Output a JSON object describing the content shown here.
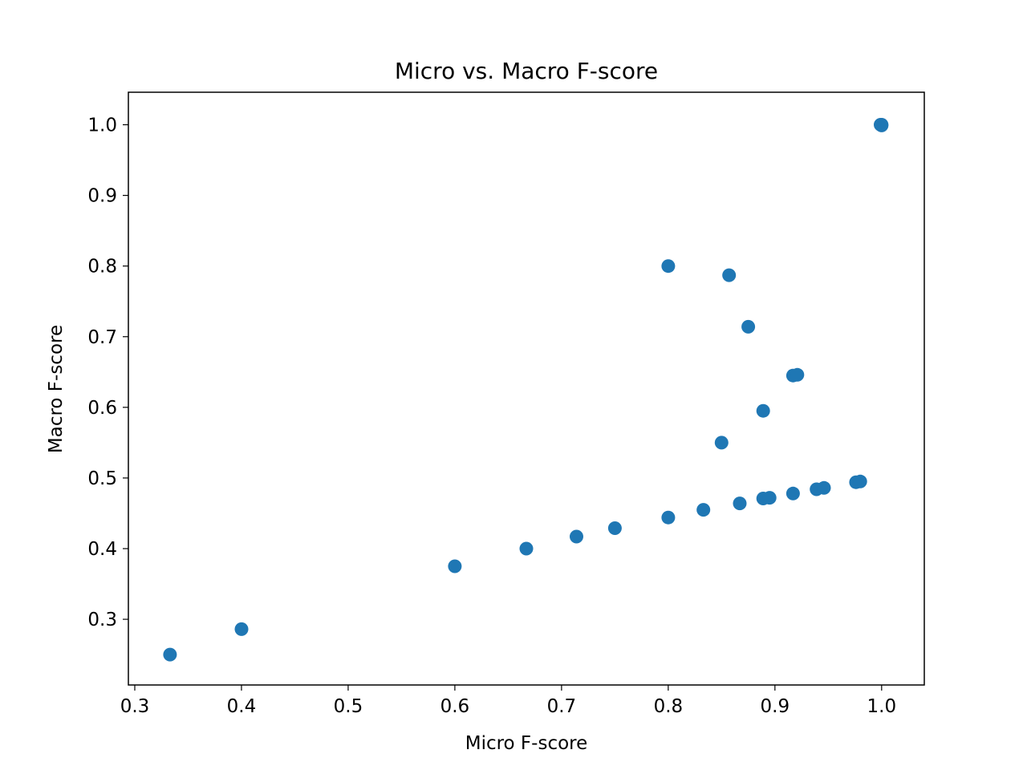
{
  "chart_data": {
    "type": "scatter",
    "title": "Micro vs. Macro F-score",
    "xlabel": "Micro F-score",
    "ylabel": "Macro F-score",
    "xlim": [
      0.294,
      1.04
    ],
    "ylim": [
      0.207,
      1.046
    ],
    "xticks": [
      0.3,
      0.4,
      0.5,
      0.6,
      0.7,
      0.8,
      0.9,
      1.0
    ],
    "yticks": [
      0.3,
      0.4,
      0.5,
      0.6,
      0.7,
      0.8,
      0.9,
      1.0
    ],
    "xtick_labels": [
      "0.3",
      "0.4",
      "0.5",
      "0.6",
      "0.7",
      "0.8",
      "0.9",
      "1.0"
    ],
    "ytick_labels": [
      "0.3",
      "0.4",
      "0.5",
      "0.6",
      "0.7",
      "0.8",
      "0.9",
      "1.0"
    ],
    "grid": false,
    "marker_color": "#1f77b4",
    "points": [
      {
        "x": 0.333,
        "y": 0.25
      },
      {
        "x": 0.4,
        "y": 0.286
      },
      {
        "x": 0.6,
        "y": 0.375
      },
      {
        "x": 0.667,
        "y": 0.4
      },
      {
        "x": 0.714,
        "y": 0.417
      },
      {
        "x": 0.75,
        "y": 0.429
      },
      {
        "x": 0.8,
        "y": 0.444
      },
      {
        "x": 0.833,
        "y": 0.455
      },
      {
        "x": 0.867,
        "y": 0.464
      },
      {
        "x": 0.889,
        "y": 0.471
      },
      {
        "x": 0.895,
        "y": 0.472
      },
      {
        "x": 0.917,
        "y": 0.478
      },
      {
        "x": 0.939,
        "y": 0.484
      },
      {
        "x": 0.946,
        "y": 0.486
      },
      {
        "x": 0.976,
        "y": 0.494
      },
      {
        "x": 0.98,
        "y": 0.495
      },
      {
        "x": 0.85,
        "y": 0.55
      },
      {
        "x": 0.889,
        "y": 0.595
      },
      {
        "x": 0.917,
        "y": 0.645
      },
      {
        "x": 0.921,
        "y": 0.646
      },
      {
        "x": 0.875,
        "y": 0.714
      },
      {
        "x": 0.857,
        "y": 0.787
      },
      {
        "x": 0.8,
        "y": 0.8
      },
      {
        "x": 1.0,
        "y": 1.0
      },
      {
        "x": 0.999,
        "y": 1.0
      },
      {
        "x": 1.0,
        "y": 0.999
      }
    ]
  }
}
